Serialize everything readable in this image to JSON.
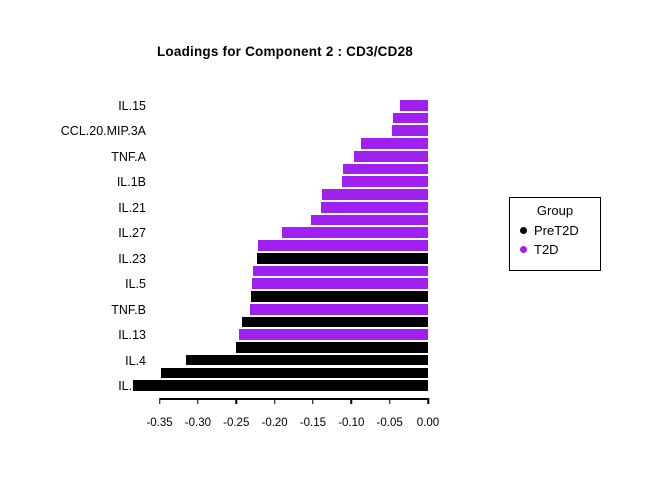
{
  "title": "Loadings for Component 2 : CD3/CD28",
  "colors": {
    "PreT2D": "#000000",
    "T2D": "#A020F0"
  },
  "legend": {
    "title": "Group",
    "items": [
      {
        "label": "PreT2D",
        "group": "PreT2D"
      },
      {
        "label": "T2D",
        "group": "T2D"
      }
    ]
  },
  "chart_data": {
    "type": "bar",
    "orientation": "horizontal",
    "title": "Loadings for Component 2 : CD3/CD28",
    "xlabel": "",
    "ylabel": "",
    "xlim": [
      -0.39,
      0.0
    ],
    "grid": false,
    "legend_position": "right",
    "x_ticks": [
      -0.35,
      -0.3,
      -0.25,
      -0.2,
      -0.15,
      -0.1,
      -0.05,
      0.0
    ],
    "x_tick_labels": [
      "-0.35",
      "-0.30",
      "-0.25",
      "-0.20",
      "-0.15",
      "-0.10",
      "-0.05",
      "0.00"
    ],
    "note": "23 bars sorted by loading; only every other bar is labeled on the y axis",
    "bars": [
      {
        "label": "IL.15",
        "value": -0.036,
        "group": "T2D"
      },
      {
        "label": "",
        "value": -0.046,
        "group": "T2D"
      },
      {
        "label": "CCL.20.MIP.3A",
        "value": -0.047,
        "group": "T2D"
      },
      {
        "label": "",
        "value": -0.087,
        "group": "T2D"
      },
      {
        "label": "TNF.A",
        "value": -0.096,
        "group": "T2D"
      },
      {
        "label": "",
        "value": -0.111,
        "group": "T2D"
      },
      {
        "label": "IL.1B",
        "value": -0.112,
        "group": "T2D"
      },
      {
        "label": "",
        "value": -0.138,
        "group": "T2D"
      },
      {
        "label": "IL.21",
        "value": -0.14,
        "group": "T2D"
      },
      {
        "label": "",
        "value": -0.152,
        "group": "T2D"
      },
      {
        "label": "IL.27",
        "value": -0.19,
        "group": "T2D"
      },
      {
        "label": "",
        "value": -0.222,
        "group": "T2D"
      },
      {
        "label": "IL.23",
        "value": -0.223,
        "group": "PreT2D"
      },
      {
        "label": "",
        "value": -0.228,
        "group": "T2D"
      },
      {
        "label": "IL.5",
        "value": -0.23,
        "group": "T2D"
      },
      {
        "label": "",
        "value": -0.231,
        "group": "PreT2D"
      },
      {
        "label": "TNF.B",
        "value": -0.232,
        "group": "T2D"
      },
      {
        "label": "",
        "value": -0.243,
        "group": "PreT2D"
      },
      {
        "label": "IL.13",
        "value": -0.246,
        "group": "T2D"
      },
      {
        "label": "",
        "value": -0.25,
        "group": "PreT2D"
      },
      {
        "label": "IL.4",
        "value": -0.315,
        "group": "PreT2D"
      },
      {
        "label": "",
        "value": -0.348,
        "group": "PreT2D"
      },
      {
        "label": "IL.31",
        "value": -0.384,
        "group": "PreT2D"
      }
    ]
  }
}
